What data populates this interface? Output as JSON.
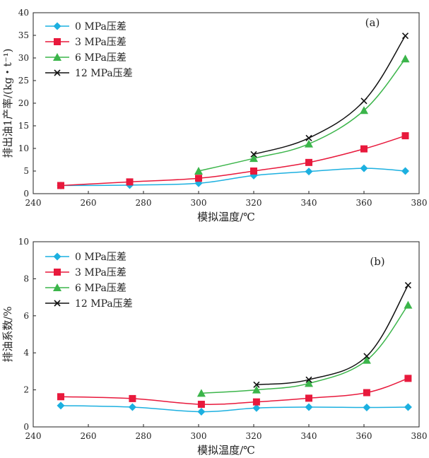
{
  "chart_data": [
    {
      "type": "line",
      "panel_label": "(a)",
      "xlabel": "模拟温度/℃",
      "ylabel": "排出油1产率/(kg・t⁻¹)",
      "xlim": [
        240,
        380
      ],
      "ylim": [
        0,
        40
      ],
      "xticks": [
        "240",
        "260",
        "280",
        "300",
        "320",
        "340",
        "360",
        "380"
      ],
      "yticks": [
        "0",
        "5",
        "10",
        "15",
        "20",
        "25",
        "30",
        "35",
        "40"
      ],
      "legend_position": "top-left",
      "series": [
        {
          "name": "0 MPa压差",
          "color": "#1cb0e0",
          "marker": "diamond",
          "x": [
            250,
            275,
            300,
            320,
            340,
            360,
            375
          ],
          "y": [
            1.8,
            1.9,
            2.3,
            4.0,
            4.9,
            5.6,
            5.0
          ]
        },
        {
          "name": "3 MPa压差",
          "color": "#e8193c",
          "marker": "square",
          "x": [
            250,
            275,
            300,
            320,
            340,
            360,
            375
          ],
          "y": [
            1.8,
            2.6,
            3.4,
            5.0,
            6.9,
            9.9,
            12.8
          ]
        },
        {
          "name": "6 MPa压差",
          "color": "#3bb54a",
          "marker": "triangle",
          "x": [
            300,
            320,
            340,
            360,
            375
          ],
          "y": [
            5.0,
            7.8,
            11.0,
            18.4,
            29.8
          ]
        },
        {
          "name": "12 MPa压差",
          "color": "#111111",
          "marker": "x",
          "x": [
            320,
            340,
            360,
            375
          ],
          "y": [
            8.7,
            12.3,
            20.5,
            34.9
          ]
        }
      ]
    },
    {
      "type": "line",
      "panel_label": "(b)",
      "xlabel": "模拟温度/℃",
      "ylabel": "排油系数/%",
      "xlim": [
        240,
        380
      ],
      "ylim": [
        0,
        10
      ],
      "xticks": [
        "240",
        "260",
        "280",
        "300",
        "320",
        "340",
        "360",
        "380"
      ],
      "yticks": [
        "0",
        "2",
        "4",
        "6",
        "8",
        "10"
      ],
      "legend_position": "top-left",
      "series": [
        {
          "name": "0 MPa压差",
          "color": "#1cb0e0",
          "marker": "diamond",
          "x": [
            250,
            276,
            301,
            321,
            340,
            361,
            376
          ],
          "y": [
            1.15,
            1.07,
            0.82,
            1.02,
            1.07,
            1.05,
            1.07
          ]
        },
        {
          "name": "3 MPa压差",
          "color": "#e8193c",
          "marker": "square",
          "x": [
            250,
            276,
            301,
            321,
            340,
            361,
            376
          ],
          "y": [
            1.63,
            1.53,
            1.22,
            1.35,
            1.55,
            1.85,
            2.62
          ]
        },
        {
          "name": "6 MPa压差",
          "color": "#3bb54a",
          "marker": "triangle",
          "x": [
            301,
            321,
            340,
            361,
            376
          ],
          "y": [
            1.82,
            2.0,
            2.35,
            3.6,
            6.58
          ]
        },
        {
          "name": "12 MPa压差",
          "color": "#111111",
          "marker": "x",
          "x": [
            321,
            340,
            361,
            376
          ],
          "y": [
            2.28,
            2.55,
            3.82,
            7.65
          ]
        }
      ]
    }
  ]
}
